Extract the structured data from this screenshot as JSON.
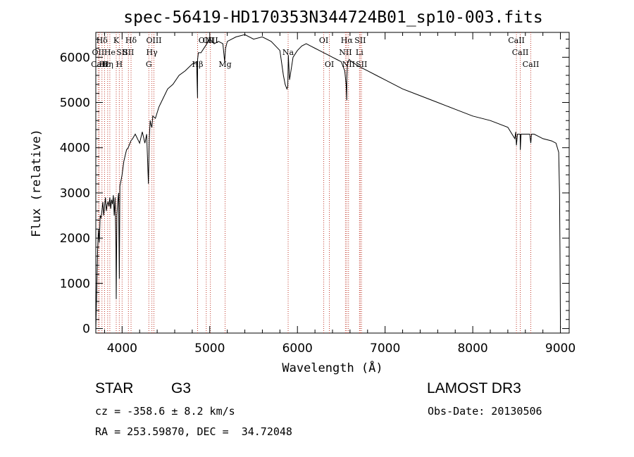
{
  "chart_data": {
    "type": "line",
    "title": "spec-56419-HD170353N344724B01_sp10-003.fits",
    "xlabel": "Wavelength (Å)",
    "ylabel": "Flux (relative)",
    "xlim": [
      3700,
      9100
    ],
    "ylim": [
      -100,
      6550
    ],
    "xticks": [
      4000,
      5000,
      6000,
      7000,
      8000,
      9000
    ],
    "xtick_labels": [
      "4000",
      "5000",
      "6000",
      "7000",
      "8000",
      "9000"
    ],
    "yticks": [
      0,
      1000,
      2000,
      3000,
      4000,
      5000,
      6000
    ],
    "ytick_labels": [
      "0",
      "1000",
      "2000",
      "3000",
      "4000",
      "5000",
      "6000"
    ],
    "series": [
      {
        "name": "flux",
        "color": "#000000",
        "x": [
          3700,
          3710,
          3720,
          3730,
          3740,
          3750,
          3760,
          3770,
          3780,
          3790,
          3800,
          3810,
          3820,
          3830,
          3840,
          3850,
          3860,
          3870,
          3880,
          3890,
          3900,
          3910,
          3920,
          3930,
          3933,
          3940,
          3950,
          3960,
          3968,
          3975,
          3990,
          4000,
          4020,
          4050,
          4070,
          4100,
          4120,
          4150,
          4200,
          4230,
          4260,
          4280,
          4300,
          4310,
          4320,
          4330,
          4340,
          4350,
          4380,
          4420,
          4470,
          4520,
          4580,
          4650,
          4720,
          4800,
          4850,
          4860,
          4861,
          4870,
          4900,
          4950,
          5000,
          5050,
          5100,
          5150,
          5170,
          5180,
          5200,
          5250,
          5300,
          5400,
          5500,
          5600,
          5700,
          5800,
          5840,
          5860,
          5880,
          5890,
          5896,
          5910,
          5950,
          6000,
          6050,
          6100,
          6150,
          6200,
          6250,
          6300,
          6350,
          6400,
          6450,
          6500,
          6540,
          6555,
          6562,
          6563,
          6570,
          6590,
          6620,
          6700,
          6800,
          6900,
          7000,
          7200,
          7400,
          7600,
          7800,
          8000,
          8200,
          8400,
          8480,
          8490,
          8498,
          8510,
          8540,
          8542,
          8550,
          8600,
          8650,
          8662,
          8670,
          8700,
          8800,
          8900,
          8950,
          8980,
          8990,
          8995,
          9000
        ],
        "y": [
          -50,
          800,
          1700,
          2200,
          1900,
          2500,
          2450,
          2600,
          2800,
          2500,
          2700,
          2900,
          2600,
          2750,
          2800,
          2700,
          2900,
          2650,
          2850,
          2750,
          2950,
          2500,
          2900,
          1800,
          650,
          2500,
          2800,
          3000,
          1100,
          3150,
          3300,
          3400,
          3700,
          3950,
          4000,
          4150,
          4200,
          4300,
          4100,
          4350,
          4100,
          4300,
          3200,
          4200,
          4600,
          4500,
          4450,
          4700,
          4650,
          4900,
          5100,
          5300,
          5400,
          5600,
          5700,
          5850,
          5900,
          5100,
          5950,
          6100,
          6100,
          6250,
          6400,
          6300,
          6350,
          6300,
          5900,
          6200,
          6350,
          6400,
          6450,
          6500,
          6400,
          6450,
          6350,
          6150,
          5600,
          5400,
          5300,
          5350,
          6050,
          5500,
          6000,
          6150,
          6250,
          6300,
          6250,
          6200,
          6150,
          6100,
          6050,
          6000,
          5950,
          5900,
          5700,
          5400,
          5050,
          5500,
          5850,
          5950,
          5900,
          5800,
          5700,
          5600,
          5500,
          5300,
          5150,
          5000,
          4850,
          4700,
          4600,
          4450,
          4200,
          4350,
          4050,
          4300,
          4300,
          3950,
          4300,
          4300,
          4300,
          4100,
          4300,
          4300,
          4200,
          4150,
          4100,
          3900,
          3000,
          1800,
          0
        ]
      }
    ],
    "line_markers": [
      {
        "label": "Hδ",
        "x": 3770,
        "row": 1
      },
      {
        "label": "OII",
        "x": 3727,
        "row": 2
      },
      {
        "label": "CaII",
        "x": 3740,
        "row": 3
      },
      {
        "label": "Hε",
        "x": 3800,
        "row": 3
      },
      {
        "label": "Hη",
        "x": 3835,
        "row": 3
      },
      {
        "label": "He",
        "x": 3860,
        "row": 2
      },
      {
        "label": "K",
        "x": 3933,
        "row": 1
      },
      {
        "label": "H",
        "x": 3968,
        "row": 3
      },
      {
        "label": "SII",
        "x": 4000,
        "row": 2
      },
      {
        "label": "Hδ",
        "x": 4102,
        "row": 1
      },
      {
        "label": "SII",
        "x": 4072,
        "row": 2
      },
      {
        "label": "OIII",
        "x": 4363,
        "row": 1
      },
      {
        "label": "Hγ",
        "x": 4340,
        "row": 2
      },
      {
        "label": "G",
        "x": 4305,
        "row": 3
      },
      {
        "label": "Hβ",
        "x": 4861,
        "row": 3
      },
      {
        "label": "OIII",
        "x": 4960,
        "row": 1
      },
      {
        "label": "OIII",
        "x": 5007,
        "row": 1
      },
      {
        "label": "Mg",
        "x": 5175,
        "row": 3
      },
      {
        "label": "Na",
        "x": 5894,
        "row": 2
      },
      {
        "label": "OI",
        "x": 6300,
        "row": 1
      },
      {
        "label": "OI",
        "x": 6364,
        "row": 3
      },
      {
        "label": "Hα",
        "x": 6563,
        "row": 1
      },
      {
        "label": "NII",
        "x": 6548,
        "row": 2
      },
      {
        "label": "NII",
        "x": 6583,
        "row": 3
      },
      {
        "label": "SII",
        "x": 6716,
        "row": 1
      },
      {
        "label": "Li",
        "x": 6708,
        "row": 2
      },
      {
        "label": "SII",
        "x": 6731,
        "row": 3
      },
      {
        "label": "CaII",
        "x": 8498,
        "row": 1
      },
      {
        "label": "CaII",
        "x": 8542,
        "row": 2
      },
      {
        "label": "CaII",
        "x": 8662,
        "row": 3
      }
    ]
  },
  "info": {
    "object_class": "STAR",
    "subclass": "G3",
    "survey": "LAMOST DR3",
    "redshift": "cz = -358.6 ± 8.2 km/s",
    "obs_date": "Obs-Date: 20130506",
    "coords": "RA = 253.59870, DEC =  34.72048"
  }
}
